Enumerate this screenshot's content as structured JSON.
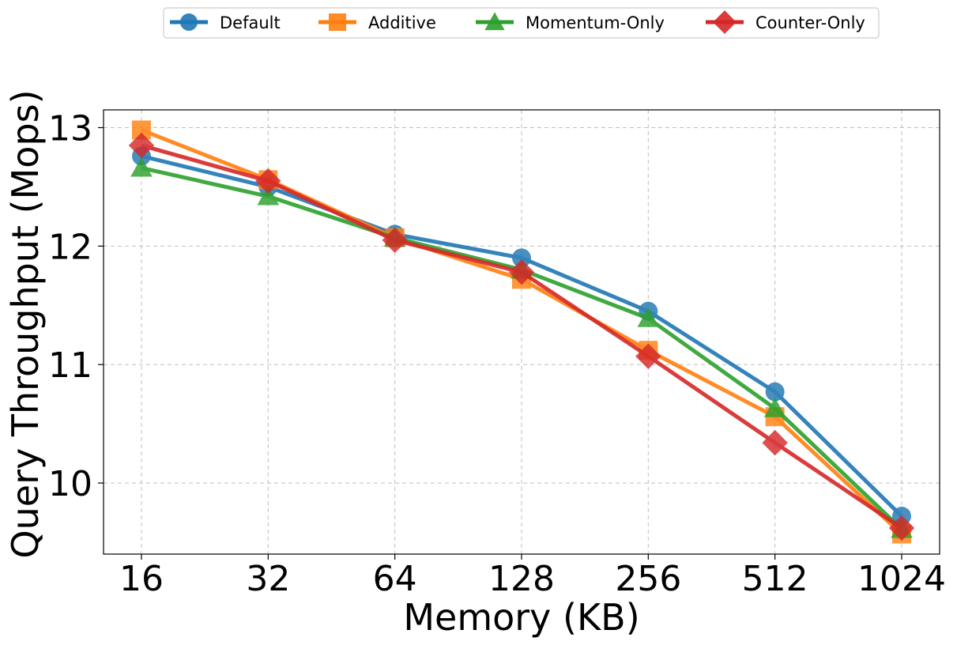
{
  "chart_data": {
    "type": "line",
    "xlabel": "Memory (KB)",
    "ylabel": "Query Throughput (Mops)",
    "categories": [
      "16",
      "32",
      "64",
      "128",
      "256",
      "512",
      "1024"
    ],
    "yticks": [
      10,
      11,
      12,
      13
    ],
    "ylim": [
      9.4,
      13.15
    ],
    "grid": true,
    "legend_position": "top-center",
    "series": [
      {
        "name": "Default",
        "color": "#1f77b4",
        "marker": "circle",
        "values": [
          12.76,
          12.5,
          12.1,
          11.9,
          11.45,
          10.77,
          9.72
        ]
      },
      {
        "name": "Additive",
        "color": "#ff7f0e",
        "marker": "square",
        "values": [
          12.98,
          12.56,
          12.07,
          11.72,
          11.12,
          10.56,
          9.57
        ]
      },
      {
        "name": "Momentum-Only",
        "color": "#2ca02c",
        "marker": "triangle",
        "values": [
          12.66,
          12.42,
          12.07,
          11.8,
          11.39,
          10.63,
          9.61
        ]
      },
      {
        "name": "Counter-Only",
        "color": "#d62728",
        "marker": "diamond",
        "values": [
          12.85,
          12.55,
          12.05,
          11.78,
          11.07,
          10.34,
          9.62
        ]
      }
    ]
  }
}
